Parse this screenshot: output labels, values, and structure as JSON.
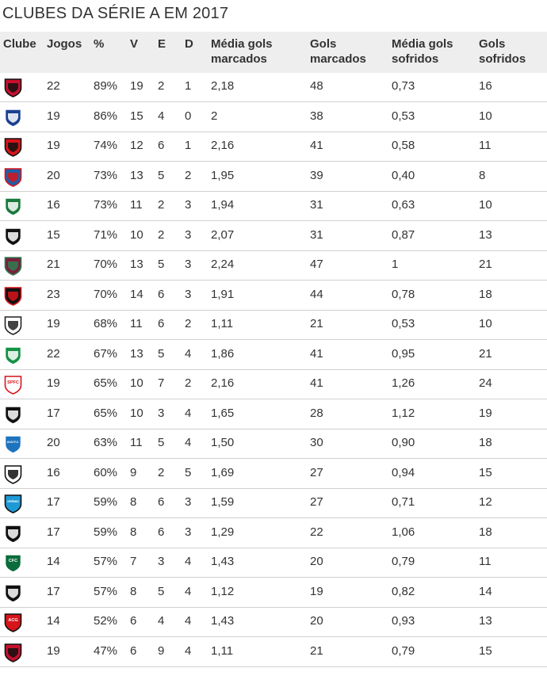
{
  "title": "CLUBES DA SÉRIE A EM 2017",
  "headers": {
    "clube": "Clube",
    "jogos": "Jogos",
    "pct": "%",
    "v": "V",
    "e": "E",
    "d": "D",
    "media_marcados": [
      "Média gols",
      "marcados"
    ],
    "gols_marcados": [
      "Gols",
      "marcados"
    ],
    "media_sofridos": [
      "Média gols",
      "sofridos"
    ],
    "gols_sofridos": [
      "Gols",
      "sofridos"
    ]
  },
  "rows": [
    {
      "icon": "vitoria-crest-icon",
      "colors": [
        "#c8102e",
        "#111111"
      ],
      "text": "",
      "jogos": "22",
      "pct": "89%",
      "v": "19",
      "e": "2",
      "d": "1",
      "media_marcados": "2,18",
      "gols_marcados": "48",
      "media_sofridos": "0,73",
      "gols_sofridos": "16"
    },
    {
      "icon": "cruzeiro-crest-icon",
      "colors": [
        "#1b3f91",
        "#ffffff"
      ],
      "text": "",
      "jogos": "19",
      "pct": "86%",
      "v": "15",
      "e": "4",
      "d": "0",
      "media_marcados": "2",
      "gols_marcados": "38",
      "media_sofridos": "0,53",
      "gols_sofridos": "10"
    },
    {
      "icon": "flamengo-crest-icon",
      "colors": [
        "#d7141a",
        "#111111"
      ],
      "text": "",
      "jogos": "19",
      "pct": "74%",
      "v": "12",
      "e": "6",
      "d": "1",
      "media_marcados": "2,16",
      "gols_marcados": "41",
      "media_sofridos": "0,58",
      "gols_sofridos": "11"
    },
    {
      "icon": "bahia-crest-icon",
      "colors": [
        "#1d5ea8",
        "#d7141a"
      ],
      "text": "",
      "jogos": "20",
      "pct": "73%",
      "v": "13",
      "e": "5",
      "d": "2",
      "media_marcados": "1,95",
      "gols_marcados": "39",
      "media_sofridos": "0,40",
      "gols_sofridos": "8"
    },
    {
      "icon": "palmeiras-crest-icon",
      "colors": [
        "#1a7a3c",
        "#ffffff"
      ],
      "text": "",
      "jogos": "16",
      "pct": "73%",
      "v": "11",
      "e": "2",
      "d": "3",
      "media_marcados": "1,94",
      "gols_marcados": "31",
      "media_sofridos": "0,63",
      "gols_sofridos": "10"
    },
    {
      "icon": "atletico-mineiro-crest-icon",
      "colors": [
        "#111111",
        "#ffffff"
      ],
      "text": "",
      "jogos": "15",
      "pct": "71%",
      "v": "10",
      "e": "2",
      "d": "3",
      "media_marcados": "2,07",
      "gols_marcados": "31",
      "media_sofridos": "0,87",
      "gols_sofridos": "13"
    },
    {
      "icon": "fluminense-crest-icon",
      "colors": [
        "#7a1f3d",
        "#2e7d4f"
      ],
      "text": "",
      "jogos": "21",
      "pct": "70%",
      "v": "13",
      "e": "5",
      "d": "3",
      "media_marcados": "2,24",
      "gols_marcados": "47",
      "media_sofridos": "1",
      "gols_sofridos": "21"
    },
    {
      "icon": "sport-crest-icon",
      "colors": [
        "#111111",
        "#d7141a"
      ],
      "text": "",
      "jogos": "23",
      "pct": "70%",
      "v": "14",
      "e": "6",
      "d": "3",
      "media_marcados": "1,91",
      "gols_marcados": "44",
      "media_sofridos": "0,78",
      "gols_sofridos": "18"
    },
    {
      "icon": "corinthians-crest-icon",
      "colors": [
        "#ffffff",
        "#222222"
      ],
      "text": "",
      "jogos": "19",
      "pct": "68%",
      "v": "11",
      "e": "6",
      "d": "2",
      "media_marcados": "1,11",
      "gols_marcados": "21",
      "media_sofridos": "0,53",
      "gols_sofridos": "10"
    },
    {
      "icon": "chapecoense-crest-icon",
      "colors": [
        "#149245",
        "#ffffff"
      ],
      "text": "",
      "jogos": "22",
      "pct": "67%",
      "v": "13",
      "e": "5",
      "d": "4",
      "media_marcados": "1,86",
      "gols_marcados": "41",
      "media_sofridos": "0,95",
      "gols_sofridos": "21"
    },
    {
      "icon": "sao-paulo-crest-icon",
      "colors": [
        "#ffffff",
        "#d7141a"
      ],
      "text": "SPFC",
      "jogos": "19",
      "pct": "65%",
      "v": "10",
      "e": "7",
      "d": "2",
      "media_marcados": "2,16",
      "gols_marcados": "41",
      "media_sofridos": "1,26",
      "gols_sofridos": "24"
    },
    {
      "icon": "botafogo-crest-icon",
      "colors": [
        "#111111",
        "#ffffff"
      ],
      "text": "",
      "jogos": "17",
      "pct": "65%",
      "v": "10",
      "e": "3",
      "d": "4",
      "media_marcados": "1,65",
      "gols_marcados": "28",
      "media_sofridos": "1,12",
      "gols_sofridos": "19"
    },
    {
      "icon": "avai-crest-icon",
      "colors": [
        "#1e73be",
        "#ffffff"
      ],
      "text": "AVAÍ F.C.",
      "jogos": "20",
      "pct": "63%",
      "v": "11",
      "e": "5",
      "d": "4",
      "media_marcados": "1,50",
      "gols_marcados": "30",
      "media_sofridos": "0,90",
      "gols_sofridos": "18"
    },
    {
      "icon": "santos-crest-icon",
      "colors": [
        "#ffffff",
        "#111111"
      ],
      "text": "",
      "jogos": "16",
      "pct": "60%",
      "v": "9",
      "e": "2",
      "d": "5",
      "media_marcados": "1,69",
      "gols_marcados": "27",
      "media_sofridos": "0,94",
      "gols_sofridos": "15"
    },
    {
      "icon": "gremio-crest-icon",
      "colors": [
        "#1d9ad6",
        "#111111"
      ],
      "text": "GRÊMIO",
      "jogos": "17",
      "pct": "59%",
      "v": "8",
      "e": "6",
      "d": "3",
      "media_marcados": "1,59",
      "gols_marcados": "27",
      "media_sofridos": "0,71",
      "gols_sofridos": "12"
    },
    {
      "icon": "ponte-preta-crest-icon",
      "colors": [
        "#111111",
        "#ffffff"
      ],
      "text": "",
      "jogos": "17",
      "pct": "59%",
      "v": "8",
      "e": "6",
      "d": "3",
      "media_marcados": "1,29",
      "gols_marcados": "22",
      "media_sofridos": "1,06",
      "gols_sofridos": "18"
    },
    {
      "icon": "coritiba-crest-icon",
      "colors": [
        "#0a6b3b",
        "#ffffff"
      ],
      "text": "CFC",
      "jogos": "14",
      "pct": "57%",
      "v": "7",
      "e": "3",
      "d": "4",
      "media_marcados": "1,43",
      "gols_marcados": "20",
      "media_sofridos": "0,79",
      "gols_sofridos": "11"
    },
    {
      "icon": "vasco-crest-icon",
      "colors": [
        "#111111",
        "#ffffff"
      ],
      "text": "",
      "jogos": "17",
      "pct": "57%",
      "v": "8",
      "e": "5",
      "d": "4",
      "media_marcados": "1,12",
      "gols_marcados": "19",
      "media_sofridos": "0,82",
      "gols_sofridos": "14"
    },
    {
      "icon": "atletico-goianiense-crest-icon",
      "colors": [
        "#d7141a",
        "#111111"
      ],
      "text": "ACG",
      "jogos": "14",
      "pct": "52%",
      "v": "6",
      "e": "4",
      "d": "4",
      "media_marcados": "1,43",
      "gols_marcados": "20",
      "media_sofridos": "0,93",
      "gols_sofridos": "13"
    },
    {
      "icon": "atletico-paranaense-crest-icon",
      "colors": [
        "#c8102e",
        "#111111"
      ],
      "text": "",
      "jogos": "19",
      "pct": "47%",
      "v": "6",
      "e": "9",
      "d": "4",
      "media_marcados": "1,11",
      "gols_marcados": "21",
      "media_sofridos": "0,79",
      "gols_sofridos": "15"
    }
  ]
}
